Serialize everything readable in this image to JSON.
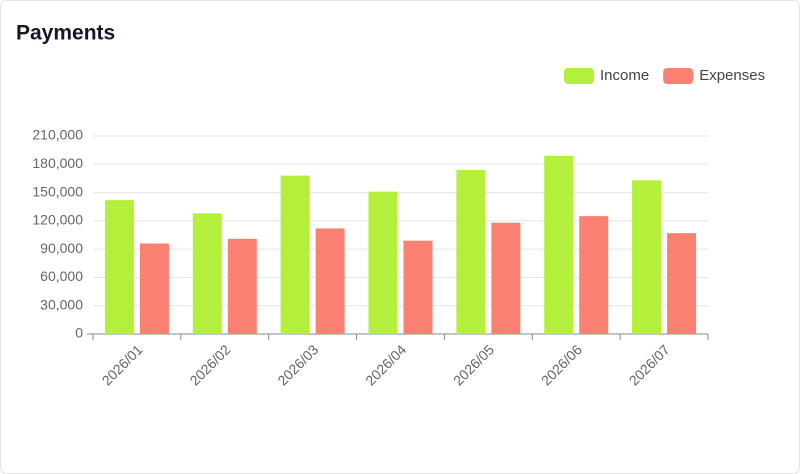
{
  "chart_data": {
    "type": "bar",
    "title": "Payments",
    "categories": [
      "2026/01",
      "2026/02",
      "2026/03",
      "2026/04",
      "2026/05",
      "2026/06",
      "2026/07"
    ],
    "series": [
      {
        "name": "Income",
        "color": "#b4ef3c",
        "values": [
          142000,
          128000,
          168000,
          151000,
          174000,
          189000,
          163000
        ]
      },
      {
        "name": "Expenses",
        "color": "#fa8072",
        "values": [
          96000,
          101000,
          112000,
          99000,
          118000,
          125000,
          107000
        ]
      }
    ],
    "ylim": [
      0,
      210000
    ],
    "yticks": [
      0,
      {
        "value": 30000,
        "label": "30,000"
      },
      {
        "value": 60000,
        "label": "60,000"
      },
      {
        "value": 90000,
        "label": "90,000"
      },
      {
        "value": 120000,
        "label": "120,000"
      },
      {
        "value": 150000,
        "label": "150,000"
      },
      {
        "value": 180000,
        "label": "180,000"
      },
      {
        "value": 210000,
        "label": "210,000"
      }
    ],
    "grid": true,
    "legend": "top-right"
  }
}
